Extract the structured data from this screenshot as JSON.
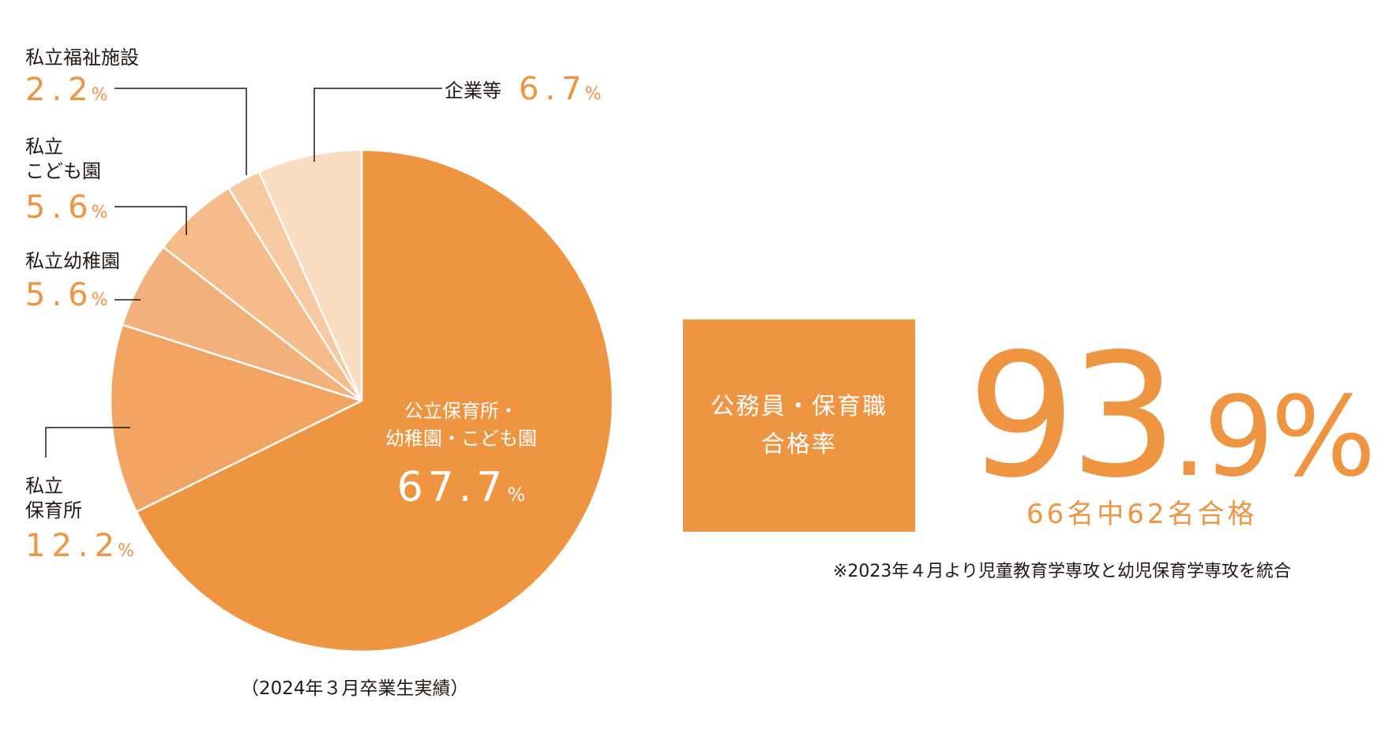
{
  "chart_data": {
    "type": "pie",
    "caption": "（2024年３月卒業生実績）",
    "slices": [
      {
        "label_lines": [
          "公立保育所・",
          "幼稚園・こども園"
        ],
        "value": 67.7,
        "display": "67.7",
        "color": "#ef9440"
      },
      {
        "label_lines": [
          "私立",
          "保育所"
        ],
        "value": 12.2,
        "display": "12.2",
        "color": "#f1a461"
      },
      {
        "label_lines": [
          "私立幼稚園"
        ],
        "value": 5.6,
        "display": "5.6",
        "color": "#f3b07a"
      },
      {
        "label_lines": [
          "私立",
          "こども園"
        ],
        "value": 5.6,
        "display": "5.6",
        "color": "#f5bb89"
      },
      {
        "label_lines": [
          "私立福祉施設"
        ],
        "value": 2.2,
        "display": "2.2",
        "color": "#f7c9a1"
      },
      {
        "label_lines": [
          "企業等"
        ],
        "value": 6.7,
        "display": "6.7",
        "color": "#fadcc0"
      }
    ],
    "percent_sign": "%"
  },
  "result": {
    "title_lines": [
      "公務員・保育職",
      "合格率"
    ],
    "rate_int": "93",
    "rate_frac": ".9",
    "rate_sign": "%",
    "detail": "66名中62名合格",
    "note": "※2023年４月より児童教育学専攻と幼児保育学専攻を統合"
  },
  "colors": {
    "accent": "#ef9440",
    "leader": "#231815",
    "text": "#231815"
  }
}
